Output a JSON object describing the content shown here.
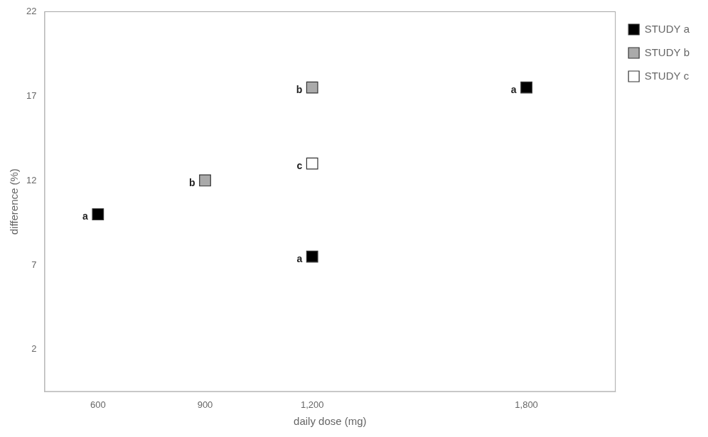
{
  "chart_data": {
    "type": "scatter",
    "xlabel": "daily dose (mg)",
    "ylabel": "difference (%)",
    "xlim": [
      450,
      2050
    ],
    "xticks": [
      600,
      900,
      1200,
      1800
    ],
    "ylim": [
      -0.5,
      22
    ],
    "yticks": [
      2,
      7,
      12,
      17,
      22
    ],
    "grid": false,
    "legend": "right",
    "series": [
      {
        "name": "STUDY a",
        "color": "#000000",
        "marker": "square",
        "x": [
          600,
          1200,
          1800
        ],
        "values": [
          10.0,
          7.5,
          17.5
        ]
      },
      {
        "name": "STUDY b",
        "color": "#aaaaaa",
        "marker": "square",
        "x": [
          900,
          1200
        ],
        "values": [
          12.0,
          17.5
        ]
      },
      {
        "name": "STUDY c",
        "color": "#ffffff",
        "marker": "square",
        "x": [
          1200
        ],
        "values": [
          13.0
        ]
      }
    ],
    "annotations": [
      {
        "x": 600,
        "y": 10.0,
        "text": "a"
      },
      {
        "x": 1200,
        "y": 7.5,
        "text": "a"
      },
      {
        "x": 1800,
        "y": 17.5,
        "text": "a"
      },
      {
        "x": 900,
        "y": 12.0,
        "text": "b"
      },
      {
        "x": 1200,
        "y": 17.5,
        "text": "b"
      },
      {
        "x": 1200,
        "y": 13.0,
        "text": "c"
      }
    ]
  }
}
